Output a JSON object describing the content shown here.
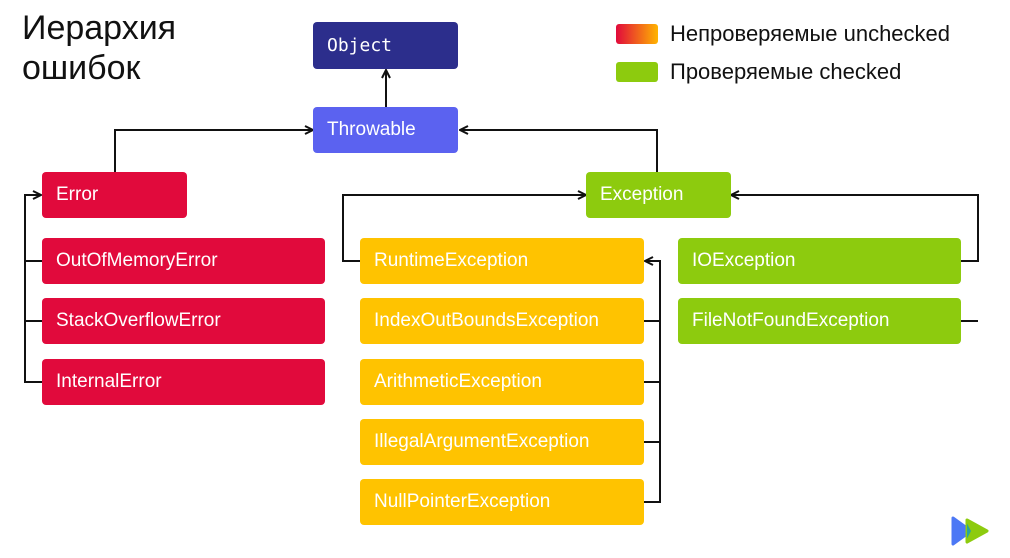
{
  "title": "Иерархия ошибок",
  "legend": {
    "unchecked": {
      "label": "Непроверяемые unchecked",
      "colors": [
        "#E10A3C",
        "#FFB400"
      ]
    },
    "checked": {
      "label": "Проверяемые checked",
      "color": "#8DCB0E"
    }
  },
  "nodes": {
    "object": {
      "label": "Object",
      "color": "#2C2E8C"
    },
    "throwable": {
      "label": "Throwable",
      "color": "#5B62F0"
    },
    "error": {
      "label": "Error",
      "color": "#E10A3C"
    },
    "oom": {
      "label": "OutOfMemoryError"
    },
    "soe": {
      "label": "StackOverflowError"
    },
    "internal": {
      "label": "InternalError"
    },
    "exception": {
      "label": "Exception",
      "color": "#8DCB0E"
    },
    "runtime": {
      "label": "RuntimeException",
      "color": "#FFC300"
    },
    "index": {
      "label": "IndexOutBoundsException"
    },
    "arithmetic": {
      "label": "ArithmeticException"
    },
    "illegal": {
      "label": "IllegalArgumentException"
    },
    "nullptr": {
      "label": "NullPointerException"
    },
    "io": {
      "label": "IOException"
    },
    "fnf": {
      "label": "FileNotFoundException"
    }
  },
  "logo": {
    "name": "play-logo-icon"
  }
}
